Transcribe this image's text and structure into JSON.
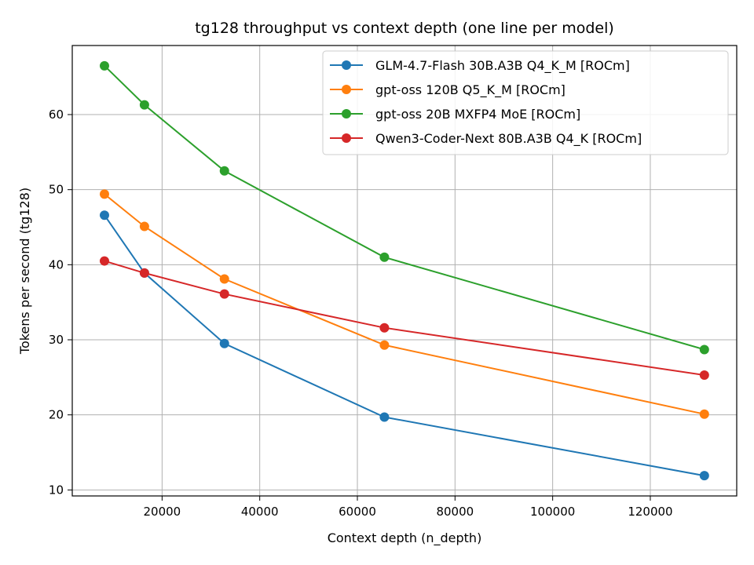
{
  "chart_data": {
    "type": "line",
    "title": "tg128 throughput vs context depth (one line per model)",
    "xlabel": "Context depth (n_depth)",
    "ylabel": "Tokens per second (tg128)",
    "xlim": [
      1600,
      137700
    ],
    "ylim": [
      9.2,
      69.2
    ],
    "xticks": [
      20000,
      40000,
      60000,
      80000,
      100000,
      120000
    ],
    "yticks": [
      10,
      20,
      30,
      40,
      50,
      60
    ],
    "grid": true,
    "legend_position": "top-right",
    "x": [
      8192,
      16384,
      32768,
      65536,
      131072
    ],
    "series": [
      {
        "name": "GLM-4.7-Flash 30B.A3B Q4_K_M [ROCm]",
        "color": "#1f77b4",
        "values": [
          46.6,
          38.9,
          29.5,
          19.7,
          11.9
        ]
      },
      {
        "name": "gpt-oss 120B Q5_K_M [ROCm]",
        "color": "#ff7f0e",
        "values": [
          49.4,
          45.1,
          38.1,
          29.3,
          20.1
        ]
      },
      {
        "name": "gpt-oss 20B MXFP4 MoE [ROCm]",
        "color": "#2ca02c",
        "values": [
          66.5,
          61.3,
          52.5,
          41.0,
          28.7
        ]
      },
      {
        "name": "Qwen3-Coder-Next 80B.A3B Q4_K [ROCm]",
        "color": "#d62728",
        "values": [
          40.5,
          38.9,
          36.1,
          31.6,
          25.3
        ]
      }
    ]
  }
}
